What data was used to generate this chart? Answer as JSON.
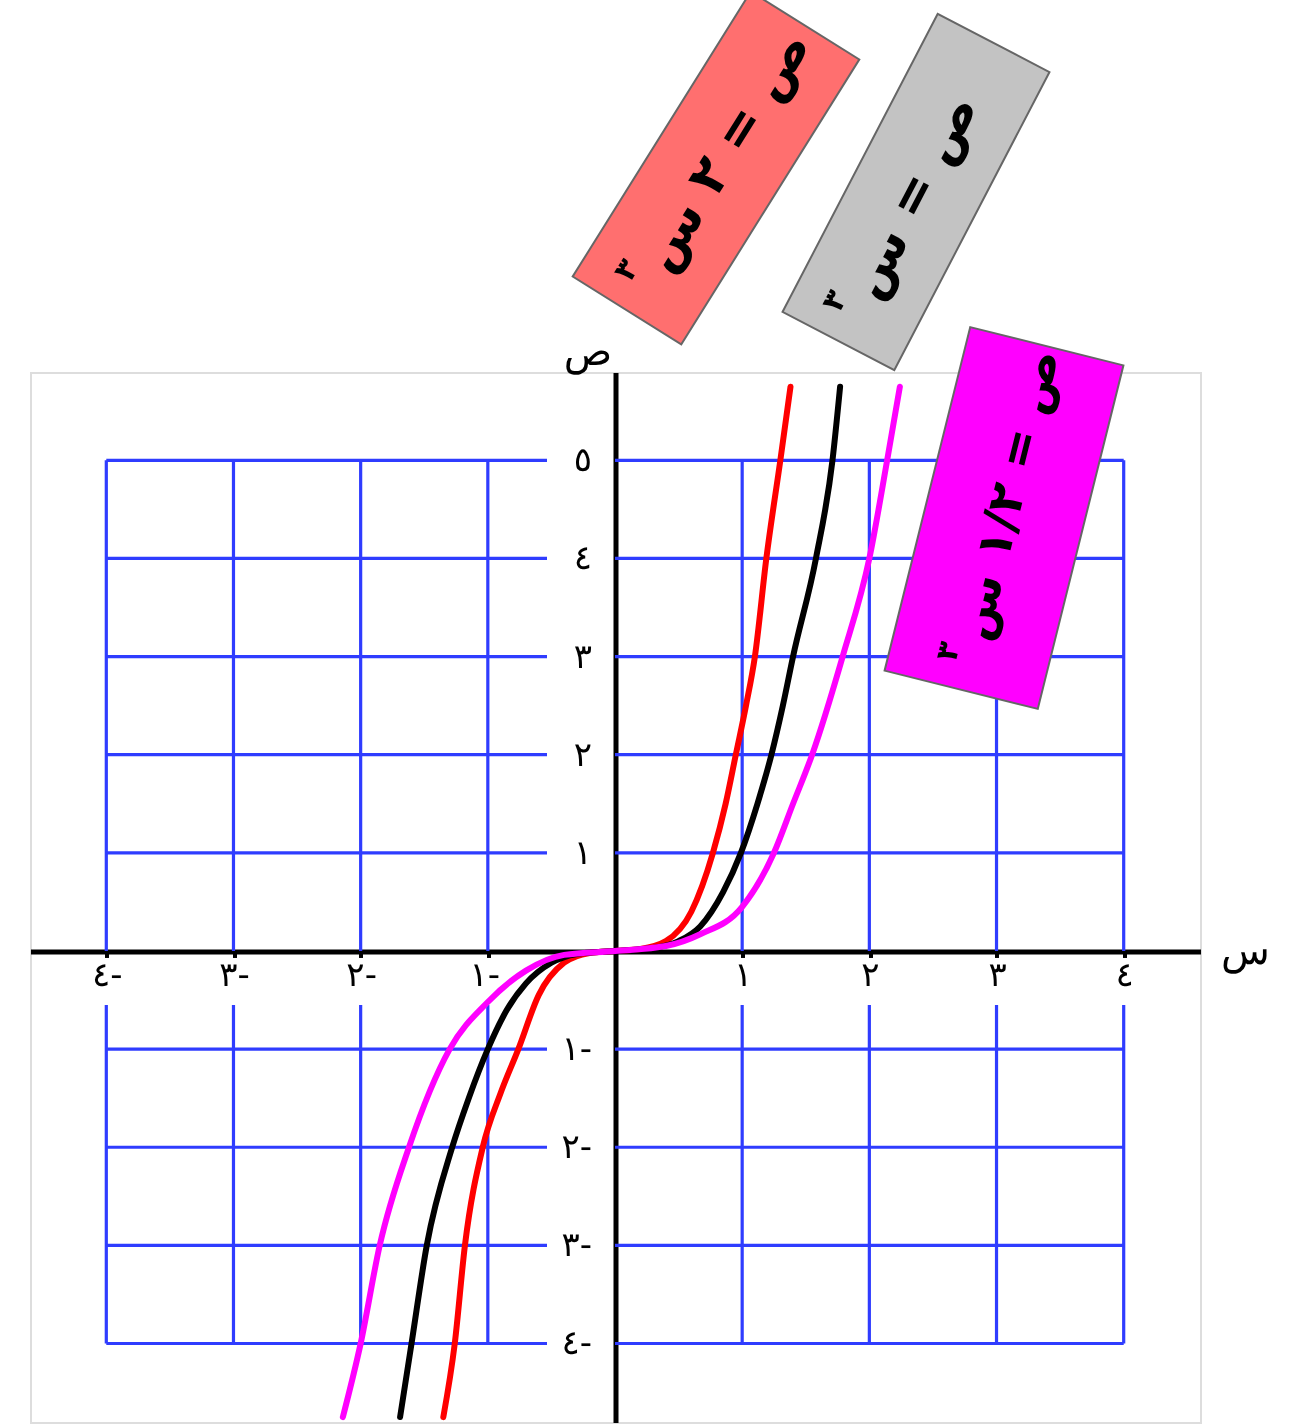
{
  "chart_data": {
    "type": "line",
    "xlabel": "س",
    "ylabel": "ص",
    "xlim": [
      -4.6,
      4.6
    ],
    "ylim": [
      -4.8,
      5.9
    ],
    "xticks": [
      {
        "value": -4,
        "label": "٤-"
      },
      {
        "value": -3,
        "label": "٣-"
      },
      {
        "value": -2,
        "label": "٢-"
      },
      {
        "value": -1,
        "label": "١-"
      },
      {
        "value": 1,
        "label": "١"
      },
      {
        "value": 2,
        "label": "٢"
      },
      {
        "value": 3,
        "label": "٣"
      },
      {
        "value": 4,
        "label": "٤"
      }
    ],
    "yticks": [
      {
        "value": -4,
        "label": "٤-"
      },
      {
        "value": -3,
        "label": "٣-"
      },
      {
        "value": -2,
        "label": "٢-"
      },
      {
        "value": -1,
        "label": "١-"
      },
      {
        "value": 1,
        "label": "١"
      },
      {
        "value": 2,
        "label": "٢"
      },
      {
        "value": 3,
        "label": "٣"
      },
      {
        "value": 4,
        "label": "٤"
      },
      {
        "value": 5,
        "label": "٥"
      }
    ],
    "grid": true,
    "series": [
      {
        "name": "ص = ٢ س$^{٣}$",
        "color": "#ff0000",
        "x": [
          -1.35,
          -1.26,
          -1.18,
          -1.04,
          -0.9,
          -0.76,
          -0.6,
          -0.4,
          -0.2,
          0,
          0.2,
          0.4,
          0.6,
          0.77,
          0.87,
          0.95,
          1.03,
          1.1,
          1.19,
          1.3,
          1.38
        ],
        "values": [
          -4.75,
          -4.0,
          -3.0,
          -2.0,
          -1.45,
          -1.0,
          -0.45,
          -0.12,
          -0.02,
          0,
          0.02,
          0.1,
          0.4,
          1.0,
          1.5,
          2.0,
          2.5,
          3.0,
          4.0,
          5.0,
          5.75
        ]
      },
      {
        "name": "ص = س$^{٣}$",
        "color": "#000000",
        "x": [
          -1.69,
          -1.6,
          -1.48,
          -1.28,
          -1.15,
          -1.0,
          -0.85,
          -0.7,
          -0.5,
          -0.3,
          0,
          0.3,
          0.5,
          0.67,
          0.85,
          0.99,
          1.12,
          1.23,
          1.32,
          1.4,
          1.58,
          1.71,
          1.77
        ],
        "values": [
          -4.75,
          -4.0,
          -3.0,
          -2.0,
          -1.5,
          -1.0,
          -0.6,
          -0.33,
          -0.12,
          -0.03,
          0,
          0.03,
          0.1,
          0.25,
          0.6,
          1.0,
          1.5,
          2.0,
          2.5,
          3.0,
          4.0,
          5.0,
          5.75
        ]
      },
      {
        "name": "ص = ١/٢ س$^{٣}$",
        "color": "#ff00ff",
        "x": [
          -2.14,
          -2.0,
          -1.85,
          -1.62,
          -1.3,
          -1.0,
          -0.7,
          -0.4,
          0,
          0.4,
          0.67,
          1.0,
          1.25,
          1.4,
          1.55,
          1.79,
          2.0,
          2.14,
          2.24
        ],
        "values": [
          -4.75,
          -4.0,
          -3.0,
          -2.0,
          -1.0,
          -0.52,
          -0.2,
          -0.04,
          0,
          0.05,
          0.17,
          0.45,
          1.0,
          1.5,
          2.0,
          3.0,
          4.0,
          5.0,
          5.75
        ]
      }
    ]
  }
}
